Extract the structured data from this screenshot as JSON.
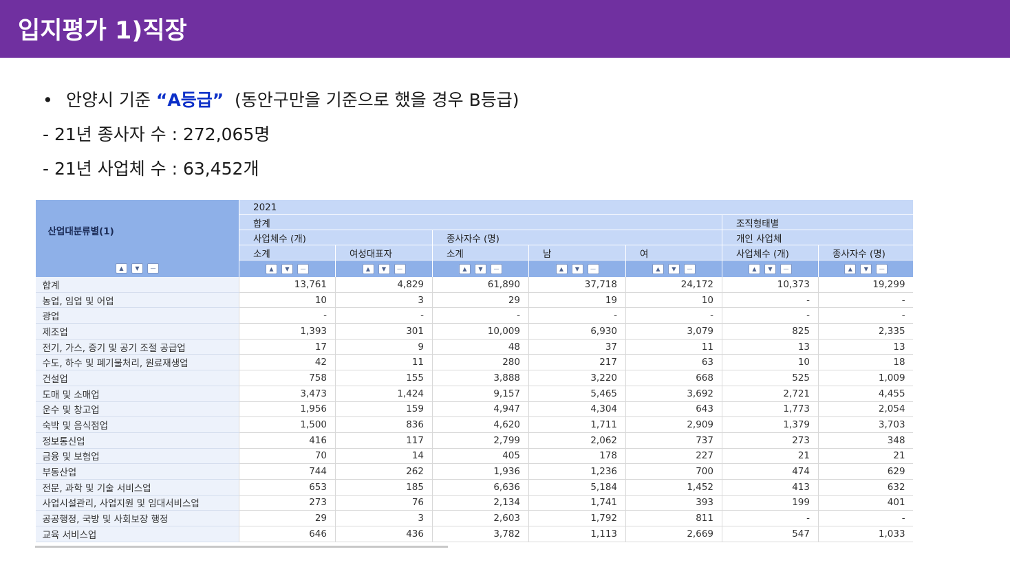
{
  "header": {
    "title": "입지평가 1)직장"
  },
  "bullets": {
    "bullet_symbol": "•",
    "line1_prefix": "안양시 기준 ",
    "line1_quote_open": "“",
    "line1_grade": "A등급",
    "line1_quote_close": "”",
    "line1_suffix": "  (동안구만을 기준으로 했을 경우 B등급)",
    "line2": "- 21년 종사자 수 : 272,065명",
    "line3": "- 21년 사업체 수 : 63,452개"
  },
  "table": {
    "corner_label": "산업대분류별(1)",
    "header_year": "2021",
    "header_total": "합계",
    "header_org": "조직형태별",
    "header_biz_count": "사업체수 (개)",
    "header_workers": "종사자수 (명)",
    "header_individual": "개인 사업체",
    "col_subtotal1": "소계",
    "col_female_rep": "여성대표자",
    "col_subtotal2": "소계",
    "col_male": "남",
    "col_female": "여",
    "col_ind_biz": "사업체수 (개)",
    "col_ind_workers": "종사자수 (명)",
    "controls": {
      "up": "▲",
      "down": "▼",
      "minus": "—"
    },
    "rows": [
      {
        "label": "합계",
        "values": [
          "13,761",
          "4,829",
          "61,890",
          "37,718",
          "24,172",
          "10,373",
          "19,299"
        ]
      },
      {
        "label": "농업, 임업 및 어업",
        "values": [
          "10",
          "3",
          "29",
          "19",
          "10",
          "-",
          "-"
        ]
      },
      {
        "label": "광업",
        "values": [
          "-",
          "-",
          "-",
          "-",
          "-",
          "-",
          "-"
        ]
      },
      {
        "label": "제조업",
        "values": [
          "1,393",
          "301",
          "10,009",
          "6,930",
          "3,079",
          "825",
          "2,335"
        ]
      },
      {
        "label": "전기, 가스, 증기 및 공기 조절 공급업",
        "values": [
          "17",
          "9",
          "48",
          "37",
          "11",
          "13",
          "13"
        ]
      },
      {
        "label": "수도, 하수 및 폐기물처리, 원료재생업",
        "values": [
          "42",
          "11",
          "280",
          "217",
          "63",
          "10",
          "18"
        ]
      },
      {
        "label": "건설업",
        "values": [
          "758",
          "155",
          "3,888",
          "3,220",
          "668",
          "525",
          "1,009"
        ]
      },
      {
        "label": "도매 및 소매업",
        "values": [
          "3,473",
          "1,424",
          "9,157",
          "5,465",
          "3,692",
          "2,721",
          "4,455"
        ]
      },
      {
        "label": "운수 및 창고업",
        "values": [
          "1,956",
          "159",
          "4,947",
          "4,304",
          "643",
          "1,773",
          "2,054"
        ]
      },
      {
        "label": "숙박 및 음식점업",
        "values": [
          "1,500",
          "836",
          "4,620",
          "1,711",
          "2,909",
          "1,379",
          "3,703"
        ]
      },
      {
        "label": "정보통신업",
        "values": [
          "416",
          "117",
          "2,799",
          "2,062",
          "737",
          "273",
          "348"
        ]
      },
      {
        "label": "금융 및 보험업",
        "values": [
          "70",
          "14",
          "405",
          "178",
          "227",
          "21",
          "21"
        ]
      },
      {
        "label": "부동산업",
        "values": [
          "744",
          "262",
          "1,936",
          "1,236",
          "700",
          "474",
          "629"
        ]
      },
      {
        "label": "전문, 과학 및 기술 서비스업",
        "values": [
          "653",
          "185",
          "6,636",
          "5,184",
          "1,452",
          "413",
          "632"
        ]
      },
      {
        "label": "사업시설관리, 사업지원 및 임대서비스업",
        "values": [
          "273",
          "76",
          "2,134",
          "1,741",
          "393",
          "199",
          "401"
        ]
      },
      {
        "label": "공공행정, 국방 및 사회보장 행정",
        "values": [
          "29",
          "3",
          "2,603",
          "1,792",
          "811",
          "-",
          "-"
        ]
      },
      {
        "label": "교육 서비스업",
        "values": [
          "646",
          "436",
          "3,782",
          "1,113",
          "2,669",
          "547",
          "1,033"
        ]
      }
    ]
  }
}
